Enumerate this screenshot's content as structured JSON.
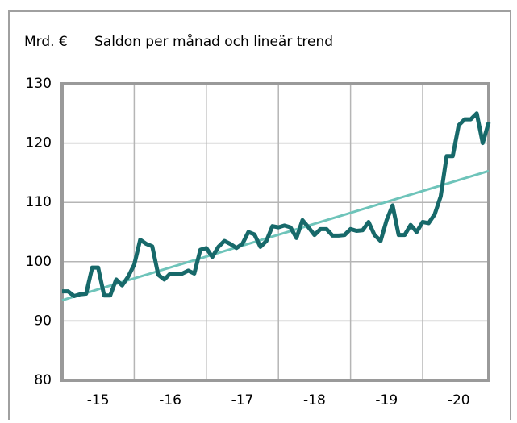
{
  "chart_data": {
    "type": "line",
    "ylabel": "Mrd. €",
    "title": "Saldon per månad och lineär trend",
    "xlim": [
      2015,
      2020.917
    ],
    "xticks": [
      {
        "value": 2015.5,
        "label": "-15"
      },
      {
        "value": 2016.5,
        "label": "-16"
      },
      {
        "value": 2017.5,
        "label": "-17"
      },
      {
        "value": 2018.5,
        "label": "-18"
      },
      {
        "value": 2019.5,
        "label": "-19"
      },
      {
        "value": 2020.5,
        "label": "-20"
      }
    ],
    "xgrid": [
      2016,
      2017,
      2018,
      2019,
      2020
    ],
    "ylim": [
      80,
      130
    ],
    "yticks": [
      80,
      90,
      100,
      110,
      120,
      130
    ],
    "grid": true,
    "series": [
      {
        "color": "#17696a",
        "x": [
          2015,
          2015.083,
          2015.167,
          2015.25,
          2015.333,
          2015.417,
          2015.5,
          2015.583,
          2015.667,
          2015.75,
          2015.833,
          2015.917,
          2016,
          2016.083,
          2016.167,
          2016.25,
          2016.333,
          2016.417,
          2016.5,
          2016.583,
          2016.667,
          2016.75,
          2016.833,
          2016.917,
          2017,
          2017.083,
          2017.167,
          2017.25,
          2017.333,
          2017.417,
          2017.5,
          2017.583,
          2017.667,
          2017.75,
          2017.833,
          2017.917,
          2018,
          2018.083,
          2018.167,
          2018.25,
          2018.333,
          2018.417,
          2018.5,
          2018.583,
          2018.667,
          2018.75,
          2018.833,
          2018.917,
          2019,
          2019.083,
          2019.167,
          2019.25,
          2019.333,
          2019.417,
          2019.5,
          2019.583,
          2019.667,
          2019.75,
          2019.833,
          2019.917,
          2020,
          2020.083,
          2020.167,
          2020.25,
          2020.333,
          2020.417,
          2020.5,
          2020.583,
          2020.667,
          2020.75,
          2020.833,
          2020.917
        ],
        "values": [
          95,
          95,
          94.2,
          94.5,
          94.6,
          99,
          99,
          94.3,
          94.3,
          97,
          96,
          97.5,
          99.5,
          103.7,
          103,
          102.6,
          97.8,
          97,
          98,
          98,
          98,
          98.5,
          98,
          102,
          102.3,
          100.8,
          102.5,
          103.5,
          103,
          102.3,
          103,
          105,
          104.6,
          102.5,
          103.5,
          106,
          105.8,
          106.1,
          105.8,
          104,
          107,
          105.8,
          104.5,
          105.5,
          105.5,
          104.4,
          104.4,
          104.5,
          105.5,
          105.2,
          105.3,
          106.7,
          104.5,
          103.5,
          107,
          109.5,
          104.5,
          104.5,
          106.2,
          105,
          106.7,
          106.5,
          108,
          111,
          117.8,
          117.8,
          123,
          124,
          124,
          125,
          120,
          123.5
        ]
      },
      {
        "color": "#6ec4ba",
        "x": [
          2015,
          2020.917
        ],
        "values": [
          93.5,
          115.3
        ]
      }
    ]
  }
}
